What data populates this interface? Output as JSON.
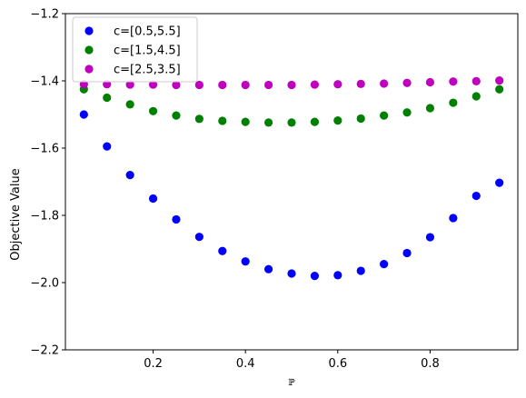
{
  "chart_data": {
    "type": "scatter",
    "title": "",
    "xlabel": "ℙ",
    "ylabel": "Objective Value",
    "xlim": [
      0.01,
      0.99
    ],
    "ylim": [
      -2.2,
      -1.2
    ],
    "grid": false,
    "legend_position": "top-left",
    "xticks": [
      0.2,
      0.4,
      0.6,
      0.8
    ],
    "xtick_labels": [
      "0.2",
      "0.4",
      "0.6",
      "0.8"
    ],
    "yticks": [
      -2.2,
      -2.0,
      -1.8,
      -1.6,
      -1.4,
      -1.2
    ],
    "ytick_labels": [
      "−2.2",
      "−2.0",
      "−1.8",
      "−1.6",
      "−1.4",
      "−1.2"
    ],
    "x": [
      0.05,
      0.1,
      0.15,
      0.2,
      0.25,
      0.3,
      0.35,
      0.4,
      0.45,
      0.5,
      0.55,
      0.6,
      0.65,
      0.7,
      0.75,
      0.8,
      0.85,
      0.9,
      0.95
    ],
    "series": [
      {
        "name": "c=[0.5,5.5]",
        "color": "#0000ff",
        "values": [
          -1.5,
          -1.595,
          -1.68,
          -1.75,
          -1.812,
          -1.864,
          -1.906,
          -1.937,
          -1.96,
          -1.973,
          -1.98,
          -1.978,
          -1.965,
          -1.945,
          -1.912,
          -1.865,
          -1.808,
          -1.742,
          -1.703
        ]
      },
      {
        "name": "c=[1.5,4.5]",
        "color": "#008000",
        "values": [
          -1.425,
          -1.45,
          -1.47,
          -1.49,
          -1.503,
          -1.513,
          -1.519,
          -1.522,
          -1.524,
          -1.524,
          -1.522,
          -1.518,
          -1.512,
          -1.503,
          -1.494,
          -1.481,
          -1.465,
          -1.446,
          -1.425
        ]
      },
      {
        "name": "c=[2.5,3.5]",
        "color": "#bf00bf",
        "values": [
          -1.41,
          -1.41,
          -1.411,
          -1.411,
          -1.412,
          -1.412,
          -1.412,
          -1.412,
          -1.412,
          -1.412,
          -1.411,
          -1.41,
          -1.409,
          -1.408,
          -1.406,
          -1.404,
          -1.402,
          -1.401,
          -1.399
        ]
      }
    ]
  }
}
